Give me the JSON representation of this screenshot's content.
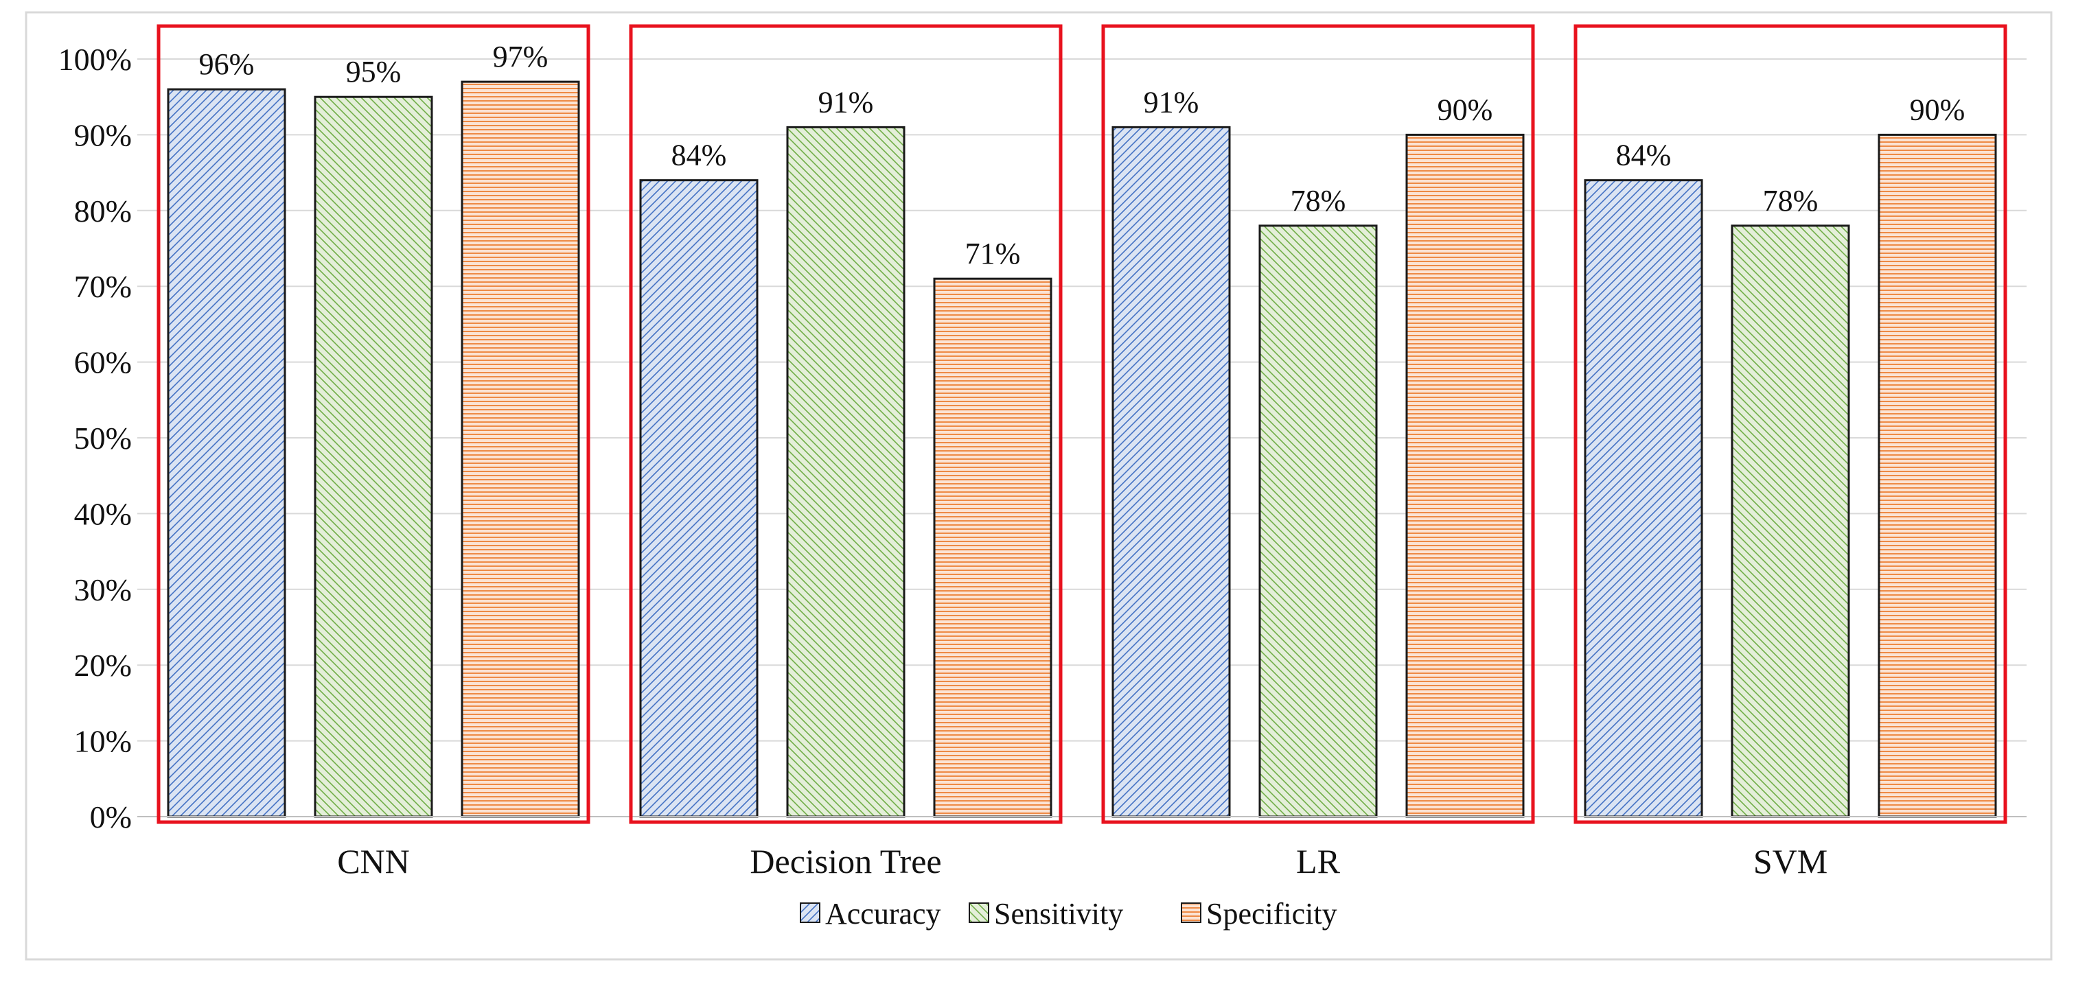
{
  "chart_data": {
    "type": "bar",
    "title": "",
    "xlabel": "",
    "ylabel": "",
    "categories": [
      "CNN",
      "Decision Tree",
      "LR",
      "SVM"
    ],
    "series": [
      {
        "name": "Accuracy",
        "values": [
          96,
          84,
          91,
          84
        ],
        "labels": [
          "96%",
          "84%",
          "91%",
          "84%"
        ],
        "color": "#4472c4",
        "fill": "#dbe4f3",
        "pattern": "diagonal-up"
      },
      {
        "name": "Sensitivity",
        "values": [
          95,
          91,
          78,
          78
        ],
        "labels": [
          "95%",
          "91%",
          "78%",
          "78%"
        ],
        "color": "#70ad47",
        "fill": "#e4efd9",
        "pattern": "diagonal-down"
      },
      {
        "name": "Specificity",
        "values": [
          97,
          71,
          90,
          90
        ],
        "labels": [
          "97%",
          "71%",
          "90%",
          "90%"
        ],
        "color": "#ed7d31",
        "fill": "#fbe3d4",
        "pattern": "horizontal"
      }
    ],
    "ylim": [
      0,
      100
    ],
    "yticks": [
      {
        "value": 0,
        "label": "0%"
      },
      {
        "value": 10,
        "label": "10%"
      },
      {
        "value": 20,
        "label": "20%"
      },
      {
        "value": 30,
        "label": "30%"
      },
      {
        "value": 40,
        "label": "40%"
      },
      {
        "value": 50,
        "label": "50%"
      },
      {
        "value": 60,
        "label": "60%"
      },
      {
        "value": 70,
        "label": "70%"
      },
      {
        "value": 80,
        "label": "80%"
      },
      {
        "value": 90,
        "label": "90%"
      },
      {
        "value": 100,
        "label": "100%"
      }
    ],
    "grid": true,
    "legend_position": "bottom",
    "highlight_boxes": {
      "color": "#e8121e",
      "around": "each category"
    }
  }
}
